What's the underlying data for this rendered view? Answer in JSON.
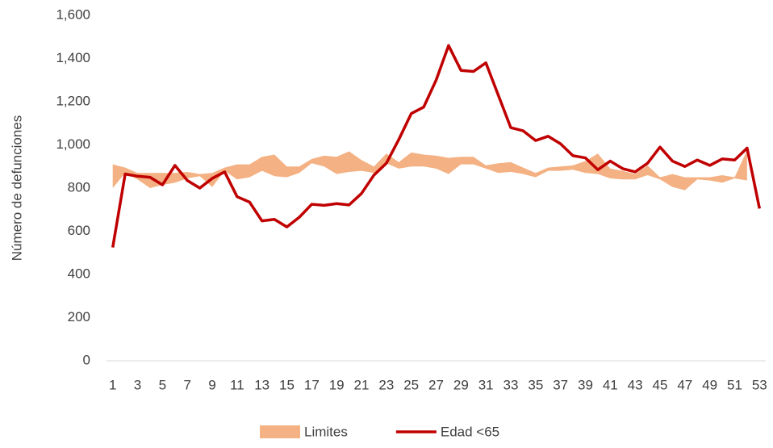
{
  "chart_data": {
    "type": "line",
    "ylabel": "Número de defunciones",
    "categories": [
      1,
      null,
      3,
      null,
      5,
      null,
      7,
      null,
      9,
      null,
      11,
      null,
      13,
      null,
      15,
      null,
      17,
      null,
      19,
      null,
      21,
      null,
      23,
      null,
      25,
      null,
      27,
      null,
      29,
      null,
      31,
      null,
      33,
      null,
      35,
      null,
      37,
      null,
      39,
      null,
      41,
      null,
      43,
      null,
      45,
      null,
      47,
      null,
      49,
      null,
      51,
      null,
      53
    ],
    "ylim": [
      0,
      1600
    ],
    "yticks": [
      0,
      200,
      400,
      600,
      800,
      {
        "value": 1000,
        "label": "1,000"
      },
      {
        "value": 1200,
        "label": "1,200"
      },
      {
        "value": 1400,
        "label": "1,400"
      },
      {
        "value": 1600,
        "label": "1,600"
      }
    ],
    "grid": false,
    "legend": "bottom",
    "series": [
      {
        "name": "Limites",
        "color": "#f4b183",
        "lower": [
          800,
          870,
          840,
          800,
          815,
          825,
          845,
          855,
          805,
          880,
          840,
          850,
          880,
          855,
          850,
          870,
          915,
          900,
          865,
          875,
          880,
          870,
          915,
          890,
          900,
          900,
          890,
          865,
          910,
          910,
          890,
          870,
          875,
          865,
          850,
          880,
          880,
          885,
          870,
          865,
          845,
          840,
          840,
          860,
          840,
          805,
          790,
          840,
          835,
          825,
          845,
          835,
          null
        ],
        "upper": [
          910,
          895,
          870,
          870,
          870,
          870,
          875,
          865,
          870,
          895,
          910,
          910,
          945,
          955,
          900,
          900,
          935,
          950,
          945,
          970,
          930,
          900,
          960,
          920,
          965,
          955,
          950,
          940,
          945,
          945,
          905,
          915,
          920,
          895,
          870,
          895,
          900,
          905,
          925,
          960,
          890,
          880,
          865,
          905,
          850,
          865,
          850,
          850,
          850,
          860,
          850,
          975,
          null
        ]
      },
      {
        "name": "Edad <65",
        "color": "#c00000",
        "values": [
          525,
          865,
          855,
          850,
          815,
          905,
          835,
          800,
          845,
          875,
          760,
          735,
          648,
          655,
          620,
          665,
          725,
          720,
          728,
          722,
          775,
          860,
          915,
          1025,
          1145,
          1175,
          1300,
          1460,
          1345,
          1340,
          1380,
          1230,
          1080,
          1065,
          1020,
          1040,
          1005,
          950,
          940,
          885,
          925,
          890,
          875,
          915,
          990,
          925,
          900,
          930,
          905,
          935,
          930,
          985,
          705
        ]
      }
    ]
  }
}
